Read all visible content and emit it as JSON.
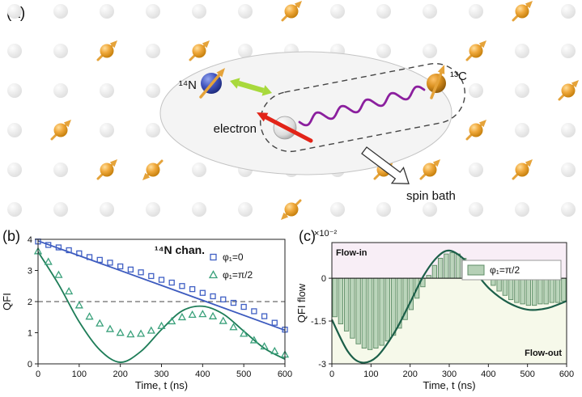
{
  "panel_a": {
    "label": "(a)",
    "nitrogen_label": "¹⁴N",
    "electron_label": "electron",
    "carbon_label": "¹³C",
    "spin_bath_label": "spin bath",
    "colors": {
      "bath_spin_arrow": "#e5a33a",
      "nitrogen_arrow": "#e5a33a",
      "carbon_arrow": "#e5a33a",
      "electron_arrow": "#e22418",
      "coupling_arrow": "#a8d93c",
      "squiggle": "#8b1f9e"
    }
  },
  "panel_b": {
    "label": "(b)"
  },
  "panel_c": {
    "label": "(c)"
  },
  "chart_data": [
    {
      "id": "b",
      "type": "line",
      "title": "¹⁴N chan.",
      "xlabel": "Time, t (ns)",
      "ylabel": "QFI",
      "xlim": [
        0,
        600
      ],
      "ylim": [
        0,
        4
      ],
      "xticks": [
        0,
        100,
        200,
        300,
        400,
        500,
        600
      ],
      "yticks": [
        0,
        1,
        2,
        3,
        4
      ],
      "dashed_hline": 2,
      "legend_position": "top-right",
      "series": [
        {
          "name": "φ₁=0",
          "marker": "square",
          "color": "#4060c4",
          "curve_color": "#3d5bbf",
          "t": [
            0,
            25,
            50,
            75,
            100,
            125,
            150,
            175,
            200,
            225,
            250,
            275,
            300,
            325,
            350,
            375,
            400,
            425,
            450,
            475,
            500,
            525,
            550,
            575,
            600
          ],
          "values": [
            3.93,
            3.82,
            3.74,
            3.65,
            3.55,
            3.43,
            3.34,
            3.25,
            3.13,
            3.03,
            2.94,
            2.82,
            2.7,
            2.61,
            2.5,
            2.4,
            2.28,
            2.17,
            2.07,
            1.96,
            1.83,
            1.69,
            1.53,
            1.32,
            1.1
          ],
          "fit_curve": [
            [
              0,
              3.95
            ],
            [
              300,
              2.52
            ],
            [
              600,
              1.08
            ]
          ]
        },
        {
          "name": "φ₁=π/2",
          "marker": "triangle",
          "color": "#3aa17b",
          "curve_color": "#1e7d58",
          "t": [
            0,
            25,
            50,
            75,
            100,
            125,
            150,
            175,
            200,
            225,
            250,
            275,
            300,
            325,
            350,
            375,
            400,
            425,
            450,
            475,
            500,
            525,
            550,
            575,
            600
          ],
          "values": [
            3.62,
            3.28,
            2.86,
            2.33,
            1.88,
            1.52,
            1.3,
            1.12,
            1.0,
            0.95,
            0.97,
            1.07,
            1.22,
            1.37,
            1.5,
            1.58,
            1.6,
            1.53,
            1.38,
            1.18,
            0.97,
            0.76,
            0.56,
            0.41,
            0.3
          ],
          "fit_curve": [
            [
              0,
              3.6
            ],
            [
              50,
              2.55
            ],
            [
              100,
              1.35
            ],
            [
              150,
              0.45
            ],
            [
              200,
              0.05
            ],
            [
              250,
              0.4
            ],
            [
              300,
              1.1
            ],
            [
              350,
              1.7
            ],
            [
              400,
              1.85
            ],
            [
              450,
              1.6
            ],
            [
              500,
              1.05
            ],
            [
              550,
              0.5
            ],
            [
              600,
              0.15
            ]
          ]
        }
      ]
    },
    {
      "id": "c",
      "type": "bar",
      "scale_label": "×10⁻²",
      "xlabel": "Time, t (ns)",
      "ylabel": "QFI flow",
      "xlim": [
        0,
        600
      ],
      "ylim": [
        -3,
        1.25
      ],
      "xticks": [
        0,
        100,
        200,
        300,
        400,
        500,
        600
      ],
      "yticks": [
        0,
        -1.5,
        -3
      ],
      "regions": [
        {
          "label": "Flow-in",
          "range": [
            0,
            1.25
          ],
          "color": "#f8eef6"
        },
        {
          "label": "Flow-out",
          "range": [
            -3,
            0
          ],
          "color": "#f6f9ea"
        }
      ],
      "legend": [
        {
          "label": "φ₁=π/2",
          "swatch_fill": "#b5d0b6",
          "swatch_edge": "#5d8c66"
        }
      ],
      "bar_fill": "#b5d0b6",
      "bar_edge": "#5d8c66",
      "curve_color": "#1c5f49",
      "bars": {
        "t": [
          7.5,
          22.5,
          37.5,
          52.5,
          67.5,
          82.5,
          97.5,
          112.5,
          127.5,
          142.5,
          157.5,
          172.5,
          187.5,
          202.5,
          217.5,
          232.5,
          247.5,
          262.5,
          277.5,
          292.5,
          307.5,
          322.5,
          337.5,
          352.5,
          367.5,
          382.5,
          397.5,
          412.5,
          427.5,
          442.5,
          457.5,
          472.5,
          487.5,
          502.5,
          517.5,
          532.5,
          547.5,
          562.5,
          577.5,
          592.5
        ],
        "values": [
          -1.35,
          -1.6,
          -1.85,
          -2.1,
          -2.3,
          -2.45,
          -2.5,
          -2.45,
          -2.35,
          -2.2,
          -2.0,
          -1.75,
          -1.45,
          -1.1,
          -0.7,
          -0.3,
          0.1,
          0.45,
          0.7,
          0.85,
          0.9,
          0.85,
          0.7,
          0.55,
          0.35,
          0.15,
          -0.05,
          -0.25,
          -0.45,
          -0.6,
          -0.75,
          -0.85,
          -0.9,
          -0.95,
          -0.95,
          -0.9,
          -0.9,
          -0.85,
          -0.85,
          -0.8
        ]
      },
      "curve": [
        [
          0,
          -1.45
        ],
        [
          40,
          -2.55
        ],
        [
          75,
          -2.95
        ],
        [
          115,
          -2.75
        ],
        [
          160,
          -1.9
        ],
        [
          200,
          -0.85
        ],
        [
          235,
          0.1
        ],
        [
          270,
          0.75
        ],
        [
          300,
          0.97
        ],
        [
          335,
          0.7
        ],
        [
          370,
          0.15
        ],
        [
          405,
          -0.4
        ],
        [
          450,
          -0.85
        ],
        [
          500,
          -1.1
        ],
        [
          550,
          -1.05
        ],
        [
          600,
          -0.8
        ]
      ]
    }
  ]
}
